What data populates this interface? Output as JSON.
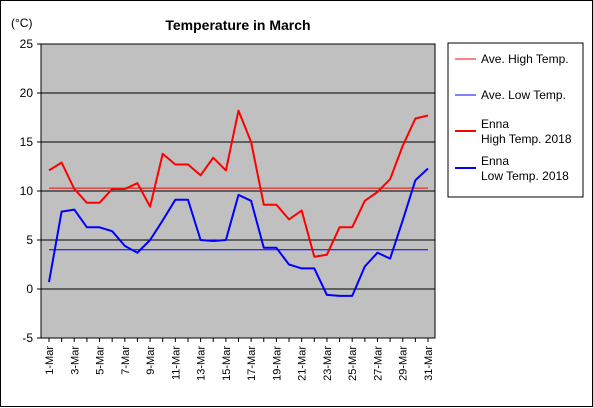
{
  "chart_data": {
    "type": "line",
    "title": "Temperature in March",
    "ylabel": "(°C)",
    "xlabel": "",
    "ylim": [
      -5,
      25
    ],
    "yticks": [
      25,
      20,
      15,
      10,
      5,
      0,
      -5
    ],
    "grid": true,
    "legend_position": "right",
    "categories": [
      "1-Mar",
      "2-Mar",
      "3-Mar",
      "4-Mar",
      "5-Mar",
      "6-Mar",
      "7-Mar",
      "8-Mar",
      "9-Mar",
      "10-Mar",
      "11-Mar",
      "12-Mar",
      "13-Mar",
      "14-Mar",
      "15-Mar",
      "16-Mar",
      "17-Mar",
      "18-Mar",
      "19-Mar",
      "20-Mar",
      "21-Mar",
      "22-Mar",
      "23-Mar",
      "24-Mar",
      "25-Mar",
      "26-Mar",
      "27-Mar",
      "28-Mar",
      "29-Mar",
      "30-Mar",
      "31-Mar"
    ],
    "tick_labels": [
      "1-Mar",
      "3-Mar",
      "5-Mar",
      "7-Mar",
      "9-Mar",
      "11-Mar",
      "13-Mar",
      "15-Mar",
      "17-Mar",
      "19-Mar",
      "21-Mar",
      "23-Mar",
      "25-Mar",
      "27-Mar",
      "29-Mar",
      "31-Mar"
    ],
    "series": [
      {
        "name": "Ave. High Temp.",
        "color": "#ff0000",
        "style": "thin",
        "values": [
          10.3,
          10.3,
          10.3,
          10.3,
          10.3,
          10.3,
          10.3,
          10.3,
          10.3,
          10.3,
          10.3,
          10.3,
          10.3,
          10.3,
          10.3,
          10.3,
          10.3,
          10.3,
          10.3,
          10.3,
          10.3,
          10.3,
          10.3,
          10.3,
          10.3,
          10.3,
          10.3,
          10.3,
          10.3,
          10.3,
          10.3
        ]
      },
      {
        "name": "Ave. Low Temp.",
        "color": "#0000ff",
        "style": "thin",
        "values": [
          4.0,
          4.0,
          4.0,
          4.0,
          4.0,
          4.0,
          4.0,
          4.0,
          4.0,
          4.0,
          4.0,
          4.0,
          4.0,
          4.0,
          4.0,
          4.0,
          4.0,
          4.0,
          4.0,
          4.0,
          4.0,
          4.0,
          4.0,
          4.0,
          4.0,
          4.0,
          4.0,
          4.0,
          4.0,
          4.0,
          4.0
        ]
      },
      {
        "name": "Enna\nHigh Temp. 2018",
        "color": "#ff0000",
        "style": "thick",
        "values": [
          12.1,
          12.9,
          10.2,
          8.8,
          8.8,
          10.2,
          10.2,
          10.8,
          8.4,
          13.8,
          12.7,
          12.7,
          11.6,
          13.4,
          12.1,
          18.2,
          15.0,
          8.6,
          8.6,
          7.1,
          8.0,
          3.3,
          3.5,
          6.3,
          6.3,
          9.0,
          9.9,
          11.2,
          14.6,
          17.4,
          17.7
        ]
      },
      {
        "name": "Enna\nLow Temp. 2018",
        "color": "#0000ff",
        "style": "thick",
        "values": [
          0.7,
          7.9,
          8.1,
          6.3,
          6.3,
          5.9,
          4.4,
          3.7,
          5.0,
          7.0,
          9.1,
          9.1,
          5.0,
          4.9,
          5.0,
          9.6,
          9.0,
          4.2,
          4.2,
          2.5,
          2.1,
          2.1,
          -0.6,
          -0.7,
          -0.7,
          2.3,
          3.7,
          3.1,
          7.0,
          11.1,
          12.3
        ]
      }
    ]
  }
}
